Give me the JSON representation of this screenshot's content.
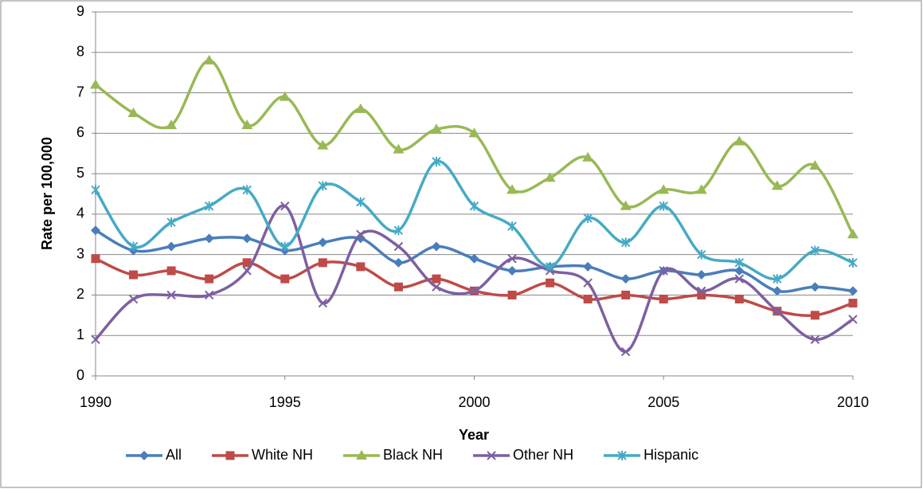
{
  "chart_data": {
    "type": "line",
    "x_label": "Year",
    "y_label": "Rate per 100,000",
    "x": [
      1990,
      1991,
      1992,
      1993,
      1994,
      1995,
      1996,
      1997,
      1998,
      1999,
      2000,
      2001,
      2002,
      2003,
      2004,
      2005,
      2006,
      2007,
      2008,
      2009,
      2010
    ],
    "xlim": [
      1990,
      2010
    ],
    "xticks": [
      1990,
      1995,
      2000,
      2005,
      2010
    ],
    "ylim": [
      0,
      9
    ],
    "yticks": [
      0,
      1,
      2,
      3,
      4,
      5,
      6,
      7,
      8,
      9
    ],
    "grid": true,
    "smooth": true,
    "legend": "bottom",
    "series": [
      {
        "name": "All",
        "color": "#4a7ebb",
        "marker": "diamond",
        "values": [
          3.6,
          3.1,
          3.2,
          3.4,
          3.4,
          3.1,
          3.3,
          3.4,
          2.8,
          3.2,
          2.9,
          2.6,
          2.7,
          2.7,
          2.4,
          2.6,
          2.5,
          2.6,
          2.1,
          2.2,
          2.1
        ]
      },
      {
        "name": "White NH",
        "color": "#be4b48",
        "marker": "square",
        "values": [
          2.9,
          2.5,
          2.6,
          2.4,
          2.8,
          2.4,
          2.8,
          2.7,
          2.2,
          2.4,
          2.1,
          2.0,
          2.3,
          1.9,
          2.0,
          1.9,
          2.0,
          1.9,
          1.6,
          1.5,
          1.8
        ]
      },
      {
        "name": "Black NH",
        "color": "#98b954",
        "marker": "triangle",
        "values": [
          7.2,
          6.5,
          6.2,
          7.8,
          6.2,
          6.9,
          5.7,
          6.6,
          5.6,
          6.1,
          6.0,
          4.6,
          4.9,
          5.4,
          4.2,
          4.6,
          4.6,
          5.8,
          4.7,
          5.2,
          3.5
        ]
      },
      {
        "name": "Other NH",
        "color": "#7d60a0",
        "marker": "x",
        "values": [
          0.9,
          1.9,
          2.0,
          2.0,
          2.6,
          4.2,
          1.8,
          3.5,
          3.2,
          2.2,
          2.1,
          2.9,
          2.6,
          2.3,
          0.6,
          2.6,
          2.1,
          2.4,
          1.6,
          0.9,
          1.4
        ]
      },
      {
        "name": "Hispanic",
        "color": "#46aac5",
        "marker": "star",
        "values": [
          4.6,
          3.2,
          3.8,
          4.2,
          4.6,
          3.2,
          4.7,
          4.3,
          3.6,
          5.3,
          4.2,
          3.7,
          2.7,
          3.9,
          3.3,
          4.2,
          3.0,
          2.8,
          2.4,
          3.1,
          2.8
        ]
      }
    ]
  }
}
